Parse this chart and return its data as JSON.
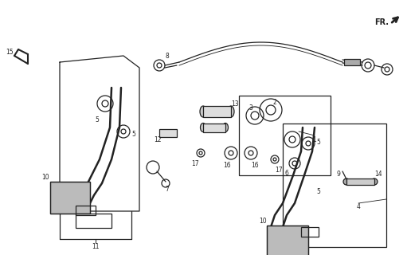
{
  "bg_color": "#ffffff",
  "line_color": "#222222",
  "fig_width": 5.11,
  "fig_height": 3.2,
  "dpi": 100,
  "fr_label": "FR."
}
